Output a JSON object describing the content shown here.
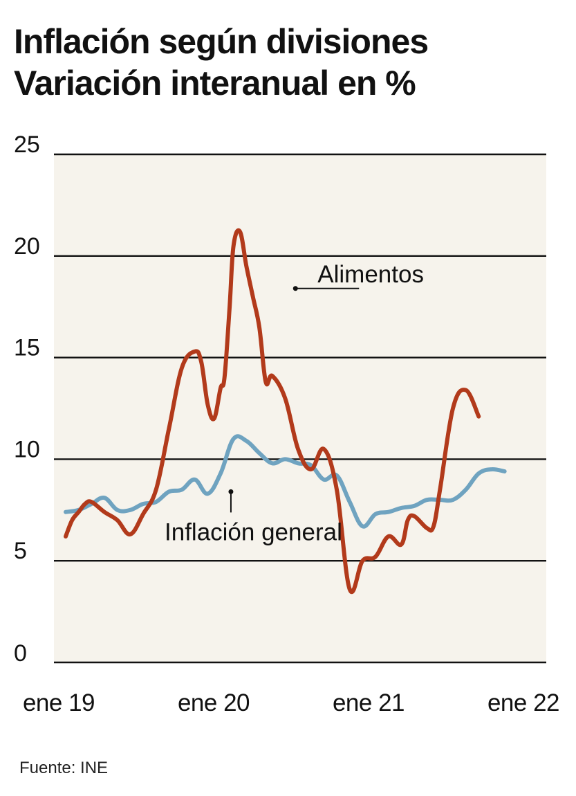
{
  "header": {
    "title": "Inflación según divisiones",
    "subtitle": "Variación interanual en %"
  },
  "source": "Fuente: INE",
  "colors": {
    "plot_bg": "#f6f3ec",
    "grid": "#111111",
    "alimentos": "#b23a1b",
    "general": "#6fa3c0",
    "text": "#111111"
  },
  "chart_data": {
    "type": "line",
    "title": "Inflación según divisiones",
    "subtitle": "Variación interanual en %",
    "xlabel": "",
    "ylabel": "",
    "ylim": [
      0,
      25
    ],
    "yticks": [
      0,
      5,
      10,
      15,
      20,
      25
    ],
    "grid": true,
    "x_tick_labels": [
      {
        "label": "ene 19",
        "month": 0
      },
      {
        "label": "ene 20",
        "month": 12
      },
      {
        "label": "ene 21",
        "month": 24
      },
      {
        "label": "ene 22",
        "month": 36
      }
    ],
    "x_range_months": [
      0,
      39
    ],
    "series": [
      {
        "name": "Alimentos",
        "label": "Alimentos",
        "month": [
          0,
          0.5,
          1,
          1.5,
          2,
          3,
          4,
          5,
          6,
          7,
          8,
          9,
          10,
          10.5,
          11,
          11.5,
          12,
          12.3,
          12.7,
          13,
          13.5,
          14,
          14.5,
          15,
          15.5,
          16,
          17,
          18,
          19,
          20,
          21,
          22,
          23,
          24,
          25,
          26,
          26.5,
          27,
          28,
          28.5,
          29,
          30,
          31,
          32,
          33,
          34,
          35,
          36,
          37,
          37.5,
          38,
          38.5,
          39
        ],
        "values": [
          6.2,
          7.0,
          7.4,
          7.8,
          7.9,
          7.4,
          7.0,
          6.3,
          7.3,
          8.5,
          11.5,
          14.5,
          15.3,
          14.8,
          12.7,
          12.0,
          13.5,
          14.0,
          17.5,
          20.5,
          21.2,
          19.5,
          18.0,
          16.5,
          13.8,
          14.1,
          13.0,
          10.5,
          9.5,
          10.5,
          8.5,
          3.6,
          5.0,
          5.2,
          6.2,
          5.8,
          7.0,
          7.2,
          6.6,
          6.7,
          8.5,
          12.5,
          13.4,
          12.1,
          null,
          null,
          null,
          null,
          null,
          null,
          null,
          null,
          null
        ]
      },
      {
        "name": "Inflación general",
        "label": "Inflación general",
        "month": [
          0,
          1,
          2,
          3,
          4,
          5,
          6,
          7,
          8,
          9,
          10,
          11,
          12,
          13,
          14,
          15,
          16,
          17,
          18,
          19,
          20,
          21,
          22,
          23,
          24,
          25,
          26,
          27,
          28,
          29,
          30,
          31,
          32,
          33,
          34,
          35,
          36,
          37,
          38,
          39
        ],
        "values": [
          7.4,
          7.5,
          7.8,
          8.1,
          7.5,
          7.5,
          7.8,
          7.9,
          8.4,
          8.5,
          9.0,
          8.3,
          9.3,
          11.0,
          10.9,
          10.3,
          9.8,
          10.0,
          9.8,
          9.7,
          9.0,
          9.2,
          7.9,
          6.7,
          7.3,
          7.4,
          7.6,
          7.7,
          8.0,
          8.0,
          8.0,
          8.5,
          9.3,
          9.5,
          9.4,
          null,
          null,
          null,
          null,
          null
        ]
      }
    ],
    "annotations": [
      {
        "text": "Alimentos",
        "series": "Alimentos",
        "month": 17.8,
        "value": 18.4
      },
      {
        "text": "Inflación general",
        "series": "Inflación general",
        "month": 12.8,
        "value": 8.4
      }
    ]
  }
}
